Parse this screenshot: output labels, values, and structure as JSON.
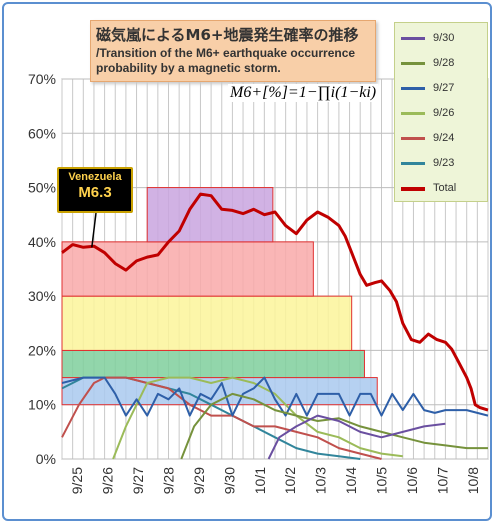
{
  "chart_data": {
    "type": "line",
    "title": "磁気嵐によるM6+地震発生確率の推移",
    "subtitle": "/Transition of the M6+ earthquake occurrence probability by a magnetic storm.",
    "formula": "M6+[%]=1−∏i(1−ki)",
    "ylim": [
      0,
      70
    ],
    "y_ticks": [
      "0%",
      "10%",
      "20%",
      "30%",
      "40%",
      "50%",
      "60%",
      "70%"
    ],
    "x_range": [
      0,
      20
    ],
    "x_ticks": [
      "9/25",
      "9/26",
      "9/27",
      "9/28",
      "9/29",
      "9/30",
      "10/1",
      "10/2",
      "10/3",
      "10/4",
      "10/5",
      "10/6",
      "10/7",
      "10/8"
    ],
    "annotation": {
      "title": "Venezuela",
      "value": "M6.3",
      "x": 1.4,
      "y": 39
    },
    "bands": [
      {
        "x_from": 0,
        "x_to": 14.8,
        "y_from": 10,
        "y_to": 15,
        "color": "#a9c9ee"
      },
      {
        "x_from": 0,
        "x_to": 14.2,
        "y_from": 15,
        "y_to": 20,
        "color": "#7fcf9c"
      },
      {
        "x_from": 0,
        "x_to": 13.6,
        "y_from": 20,
        "y_to": 30,
        "color": "#fbf59a"
      },
      {
        "x_from": 0,
        "x_to": 11.8,
        "y_from": 30,
        "y_to": 40,
        "color": "#f9a9a9"
      },
      {
        "x_from": 4.0,
        "x_to": 9.9,
        "y_from": 40,
        "y_to": 50,
        "color": "#c9a4df"
      }
    ],
    "series": [
      {
        "name": "9/30",
        "color": "#6a4fa0",
        "values": [
          [
            9.7,
            0
          ],
          [
            10.2,
            4
          ],
          [
            11,
            6
          ],
          [
            12,
            8
          ],
          [
            13,
            7
          ],
          [
            14,
            5
          ],
          [
            15,
            4
          ],
          [
            16,
            5
          ],
          [
            17,
            6
          ],
          [
            18,
            6.5
          ]
        ]
      },
      {
        "name": "9/28",
        "color": "#76923c",
        "values": [
          [
            5.6,
            0
          ],
          [
            6.2,
            6
          ],
          [
            7,
            10
          ],
          [
            8,
            12
          ],
          [
            9,
            11
          ],
          [
            10,
            9
          ],
          [
            11,
            8
          ],
          [
            12,
            7
          ],
          [
            13,
            7.5
          ],
          [
            14,
            6
          ],
          [
            15,
            5
          ],
          [
            16,
            4
          ],
          [
            17,
            3
          ],
          [
            18,
            2.5
          ],
          [
            19,
            2
          ],
          [
            20,
            2
          ]
        ]
      },
      {
        "name": "9/27",
        "color": "#2e5fa8",
        "values": [
          [
            0,
            14
          ],
          [
            1,
            15
          ],
          [
            2,
            15
          ],
          [
            2.5,
            12
          ],
          [
            3,
            8
          ],
          [
            3.5,
            11
          ],
          [
            4,
            8
          ],
          [
            4.5,
            12
          ],
          [
            5,
            11
          ],
          [
            5.5,
            13
          ],
          [
            6,
            8
          ],
          [
            6.5,
            12
          ],
          [
            7,
            11
          ],
          [
            7.5,
            14
          ],
          [
            8,
            8
          ],
          [
            8.5,
            12
          ],
          [
            9,
            13
          ],
          [
            9.5,
            15
          ],
          [
            10,
            11
          ],
          [
            10.5,
            8
          ],
          [
            11,
            12
          ],
          [
            11.5,
            8
          ],
          [
            12,
            12
          ],
          [
            12.5,
            12
          ],
          [
            13,
            12
          ],
          [
            13.5,
            8
          ],
          [
            14,
            12
          ],
          [
            14.5,
            12
          ],
          [
            15,
            8
          ],
          [
            15.5,
            12
          ],
          [
            16,
            9
          ],
          [
            16.5,
            12
          ],
          [
            17,
            9
          ],
          [
            17.5,
            8.5
          ],
          [
            18,
            9
          ],
          [
            18.5,
            9
          ],
          [
            19,
            9
          ],
          [
            19.5,
            8.5
          ],
          [
            20,
            8
          ]
        ]
      },
      {
        "name": "9/26",
        "color": "#9bbb59",
        "values": [
          [
            2.4,
            0
          ],
          [
            3,
            6
          ],
          [
            4,
            14
          ],
          [
            5,
            15
          ],
          [
            6,
            15
          ],
          [
            7,
            14
          ],
          [
            8,
            15
          ],
          [
            9,
            14
          ],
          [
            10,
            12
          ],
          [
            11,
            8
          ],
          [
            12,
            5
          ],
          [
            13,
            4
          ],
          [
            14,
            2
          ],
          [
            15,
            1
          ],
          [
            16,
            0.5
          ]
        ]
      },
      {
        "name": "9/24",
        "color": "#c0504d",
        "values": [
          [
            0,
            4
          ],
          [
            0.8,
            10
          ],
          [
            1.5,
            14
          ],
          [
            2,
            15
          ],
          [
            3,
            15
          ],
          [
            4,
            14
          ],
          [
            5,
            13
          ],
          [
            6,
            10
          ],
          [
            7,
            8
          ],
          [
            8,
            8
          ],
          [
            9,
            6
          ],
          [
            10,
            6
          ],
          [
            11,
            5
          ],
          [
            12,
            4
          ],
          [
            13,
            2
          ],
          [
            14,
            1
          ],
          [
            15,
            0
          ]
        ]
      },
      {
        "name": "9/23",
        "color": "#31859b",
        "values": [
          [
            0,
            13
          ],
          [
            1,
            15
          ],
          [
            2,
            15
          ],
          [
            3,
            15
          ],
          [
            4,
            14
          ],
          [
            5,
            13
          ],
          [
            6,
            12
          ],
          [
            7,
            10
          ],
          [
            8,
            8
          ],
          [
            9,
            6
          ],
          [
            10,
            4
          ],
          [
            11,
            2
          ],
          [
            12,
            1
          ],
          [
            13,
            0.5
          ],
          [
            14,
            0
          ]
        ]
      },
      {
        "name": "Total",
        "color": "#c00000",
        "values": [
          [
            0,
            38
          ],
          [
            0.5,
            39.5
          ],
          [
            1,
            39
          ],
          [
            1.5,
            39.2
          ],
          [
            2,
            38
          ],
          [
            2.5,
            36
          ],
          [
            3,
            34.8
          ],
          [
            3.5,
            36.5
          ],
          [
            4,
            37.2
          ],
          [
            4.5,
            37.6
          ],
          [
            5,
            40
          ],
          [
            5.5,
            42
          ],
          [
            6,
            46
          ],
          [
            6.5,
            48.8
          ],
          [
            7,
            48.5
          ],
          [
            7.5,
            46
          ],
          [
            8,
            45.8
          ],
          [
            8.5,
            45.2
          ],
          [
            9,
            46
          ],
          [
            9.5,
            45
          ],
          [
            10,
            45.5
          ],
          [
            10.5,
            43
          ],
          [
            11,
            41.5
          ],
          [
            11.5,
            44
          ],
          [
            12,
            45.5
          ],
          [
            12.5,
            44.5
          ],
          [
            13,
            43
          ],
          [
            13.3,
            41
          ],
          [
            13.6,
            38
          ],
          [
            14,
            34
          ],
          [
            14.3,
            32
          ],
          [
            14.7,
            32.5
          ],
          [
            15,
            32.8
          ],
          [
            15.4,
            31
          ],
          [
            15.7,
            29
          ],
          [
            16,
            25
          ],
          [
            16.4,
            22
          ],
          [
            16.8,
            21.5
          ],
          [
            17.2,
            23
          ],
          [
            17.6,
            22
          ],
          [
            18,
            21.5
          ],
          [
            18.3,
            20.2
          ],
          [
            18.6,
            18
          ],
          [
            19,
            15
          ],
          [
            19.2,
            13
          ],
          [
            19.4,
            10
          ],
          [
            19.6,
            9.5
          ],
          [
            20,
            9
          ]
        ]
      }
    ]
  }
}
